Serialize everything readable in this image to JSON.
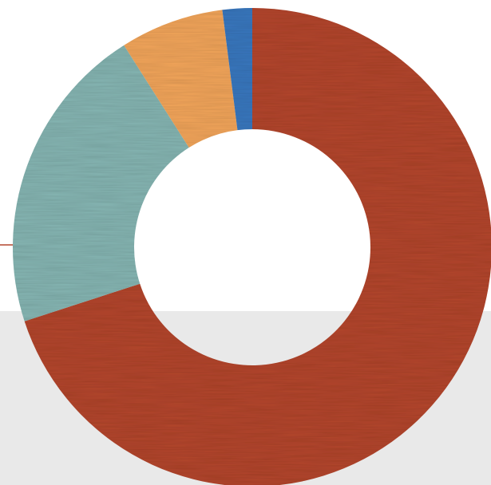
{
  "chart_data": {
    "type": "donut",
    "values": [
      70,
      21,
      7,
      2
    ],
    "colors": [
      "#b4462f",
      "#86b6b3",
      "#f3a65b",
      "#3b78bf"
    ],
    "start_angle": 0,
    "clockwise": true
  }
}
